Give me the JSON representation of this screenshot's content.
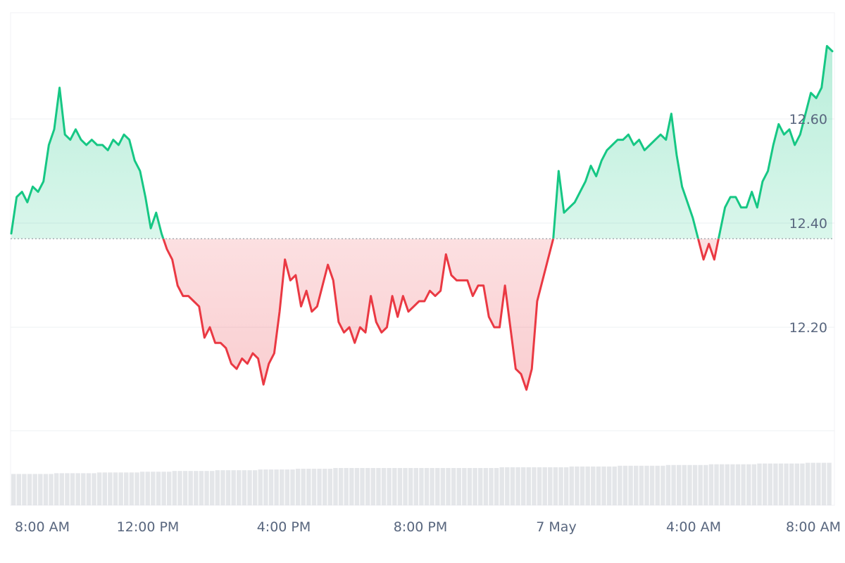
{
  "chart_data": {
    "type": "area",
    "title": "",
    "xlabel": "",
    "ylabel": "",
    "baseline": 12.37,
    "ylim": [
      12.0,
      12.8
    ],
    "yticks": [
      "12.20",
      "12.40",
      "12.60"
    ],
    "xticks": [
      "8:00 AM",
      "12:00 PM",
      "4:00 PM",
      "8:00 PM",
      "7 May",
      "4:00 AM",
      "8:00 AM"
    ],
    "x_start": "6 May 7:05 AM",
    "x_end": "7 May 8:40 AM",
    "colors": {
      "up": "#16c784",
      "down": "#ea3943",
      "grid": "#eef0f3",
      "baseline": "#8f969e",
      "volume": "#d9dbe0"
    },
    "series": [
      {
        "values": [
          12.38,
          12.45,
          12.46,
          12.44,
          12.47,
          12.46,
          12.48,
          12.55,
          12.58,
          12.66,
          12.57,
          12.56,
          12.58,
          12.56,
          12.55,
          12.56,
          12.55,
          12.55,
          12.54,
          12.56,
          12.55,
          12.57,
          12.56,
          12.52,
          12.5,
          12.45,
          12.39,
          12.42,
          12.38,
          12.35,
          12.33,
          12.28,
          12.26,
          12.26,
          12.25,
          12.24,
          12.18,
          12.2,
          12.17,
          12.17,
          12.16,
          12.13,
          12.12,
          12.14,
          12.13,
          12.15,
          12.14,
          12.09,
          12.13,
          12.15,
          12.23,
          12.33,
          12.29,
          12.3,
          12.24,
          12.27,
          12.23,
          12.24,
          12.28,
          12.32,
          12.29,
          12.21,
          12.19,
          12.2,
          12.17,
          12.2,
          12.19,
          12.26,
          12.21,
          12.19,
          12.2,
          12.26,
          12.22,
          12.26,
          12.23,
          12.24,
          12.25,
          12.25,
          12.27,
          12.26,
          12.27,
          12.34,
          12.3,
          12.29,
          12.29,
          12.29,
          12.26,
          12.28,
          12.28,
          12.22,
          12.2,
          12.2,
          12.28,
          12.2,
          12.12,
          12.11,
          12.08,
          12.12,
          12.25,
          12.29,
          12.33,
          12.37,
          12.5,
          12.42,
          12.43,
          12.44,
          12.46,
          12.48,
          12.51,
          12.49,
          12.52,
          12.54,
          12.55,
          12.56,
          12.56,
          12.57,
          12.55,
          12.56,
          12.54,
          12.55,
          12.56,
          12.57,
          12.56,
          12.61,
          12.53,
          12.47,
          12.44,
          12.41,
          12.37,
          12.33,
          12.36,
          12.33,
          12.38,
          12.43,
          12.45,
          12.45,
          12.43,
          12.43,
          12.46,
          12.43,
          12.48,
          12.5,
          12.55,
          12.59,
          12.57,
          12.58,
          12.55,
          12.57,
          12.61,
          12.65,
          12.64,
          12.66,
          12.74,
          12.73
        ]
      }
    ],
    "volume": [
      0.42,
      0.42,
      0.42,
      0.42,
      0.42,
      0.42,
      0.42,
      0.42,
      0.43,
      0.43,
      0.43,
      0.43,
      0.43,
      0.43,
      0.43,
      0.43,
      0.44,
      0.44,
      0.44,
      0.44,
      0.44,
      0.44,
      0.44,
      0.44,
      0.45,
      0.45,
      0.45,
      0.45,
      0.45,
      0.45,
      0.46,
      0.46,
      0.46,
      0.46,
      0.46,
      0.46,
      0.46,
      0.46,
      0.47,
      0.47,
      0.47,
      0.47,
      0.47,
      0.47,
      0.47,
      0.47,
      0.48,
      0.48,
      0.48,
      0.48,
      0.48,
      0.48,
      0.48,
      0.49,
      0.49,
      0.49,
      0.49,
      0.49,
      0.49,
      0.49,
      0.5,
      0.5,
      0.5,
      0.5,
      0.5,
      0.5,
      0.5,
      0.5,
      0.5,
      0.5,
      0.5,
      0.5,
      0.5,
      0.5,
      0.5,
      0.5,
      0.5,
      0.5,
      0.5,
      0.5,
      0.5,
      0.5,
      0.5,
      0.5,
      0.5,
      0.5,
      0.5,
      0.5,
      0.5,
      0.5,
      0.5,
      0.51,
      0.51,
      0.51,
      0.51,
      0.51,
      0.51,
      0.51,
      0.51,
      0.51,
      0.51,
      0.51,
      0.51,
      0.51,
      0.52,
      0.52,
      0.52,
      0.52,
      0.52,
      0.52,
      0.52,
      0.52,
      0.52,
      0.53,
      0.53,
      0.53,
      0.53,
      0.53,
      0.53,
      0.53,
      0.53,
      0.53,
      0.54,
      0.54,
      0.54,
      0.54,
      0.54,
      0.54,
      0.54,
      0.54,
      0.55,
      0.55,
      0.55,
      0.55,
      0.55,
      0.55,
      0.55,
      0.55,
      0.55,
      0.56,
      0.56,
      0.56,
      0.56,
      0.56,
      0.56,
      0.56,
      0.56,
      0.56,
      0.57,
      0.57,
      0.57,
      0.57,
      0.57
    ]
  }
}
